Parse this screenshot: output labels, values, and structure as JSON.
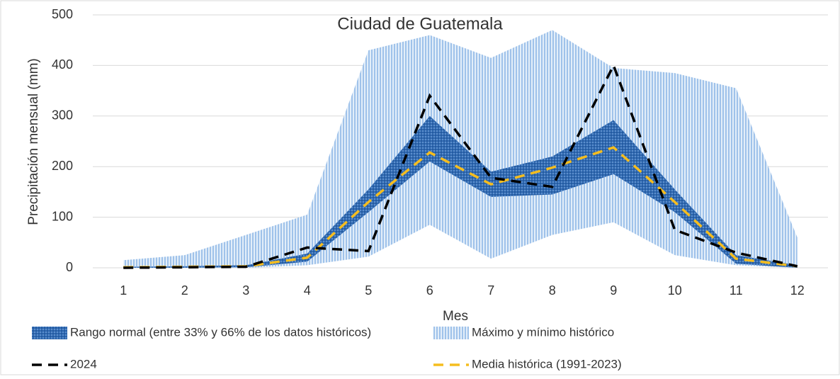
{
  "chart_data": {
    "type": "line",
    "title": "Ciudad de Guatemala",
    "x_label": "Mes",
    "y_label": "Precipitación mensual (mm)",
    "x": [
      1,
      2,
      3,
      4,
      5,
      6,
      7,
      8,
      9,
      10,
      11,
      12
    ],
    "xlim": [
      0.5,
      12.5
    ],
    "xticks": [
      1,
      2,
      3,
      4,
      5,
      6,
      7,
      8,
      9,
      10,
      11,
      12
    ],
    "ylim": [
      0,
      500
    ],
    "yticks": [
      0,
      100,
      200,
      300,
      400,
      500
    ],
    "grid": true,
    "legend": "bottom",
    "series": [
      {
        "name": "Rango normal (entre 33% y 66% de los datos históricos)",
        "color": "#2f6ab3",
        "upper": [
          2,
          3,
          5,
          28,
          155,
          300,
          190,
          220,
          292,
          155,
          25,
          5
        ],
        "lower": [
          0,
          0,
          1,
          12,
          110,
          210,
          140,
          145,
          185,
          110,
          8,
          0
        ]
      },
      {
        "name": "Máximo y mínimo histórico",
        "color": "#9fc2ea",
        "upper": [
          15,
          25,
          65,
          105,
          430,
          460,
          415,
          470,
          395,
          385,
          355,
          60
        ],
        "lower": [
          0,
          0,
          0,
          5,
          22,
          85,
          18,
          65,
          90,
          25,
          5,
          0
        ]
      },
      {
        "name": "2024",
        "color": "#000000",
        "dash": true,
        "values": [
          0,
          1,
          2,
          40,
          33,
          340,
          178,
          160,
          400,
          75,
          30,
          3
        ]
      },
      {
        "name": "Media histórica (1991-2023)",
        "color": "#f5bd1f",
        "dash": true,
        "values": [
          1,
          2,
          3,
          20,
          130,
          228,
          165,
          198,
          238,
          130,
          18,
          3
        ]
      }
    ]
  }
}
